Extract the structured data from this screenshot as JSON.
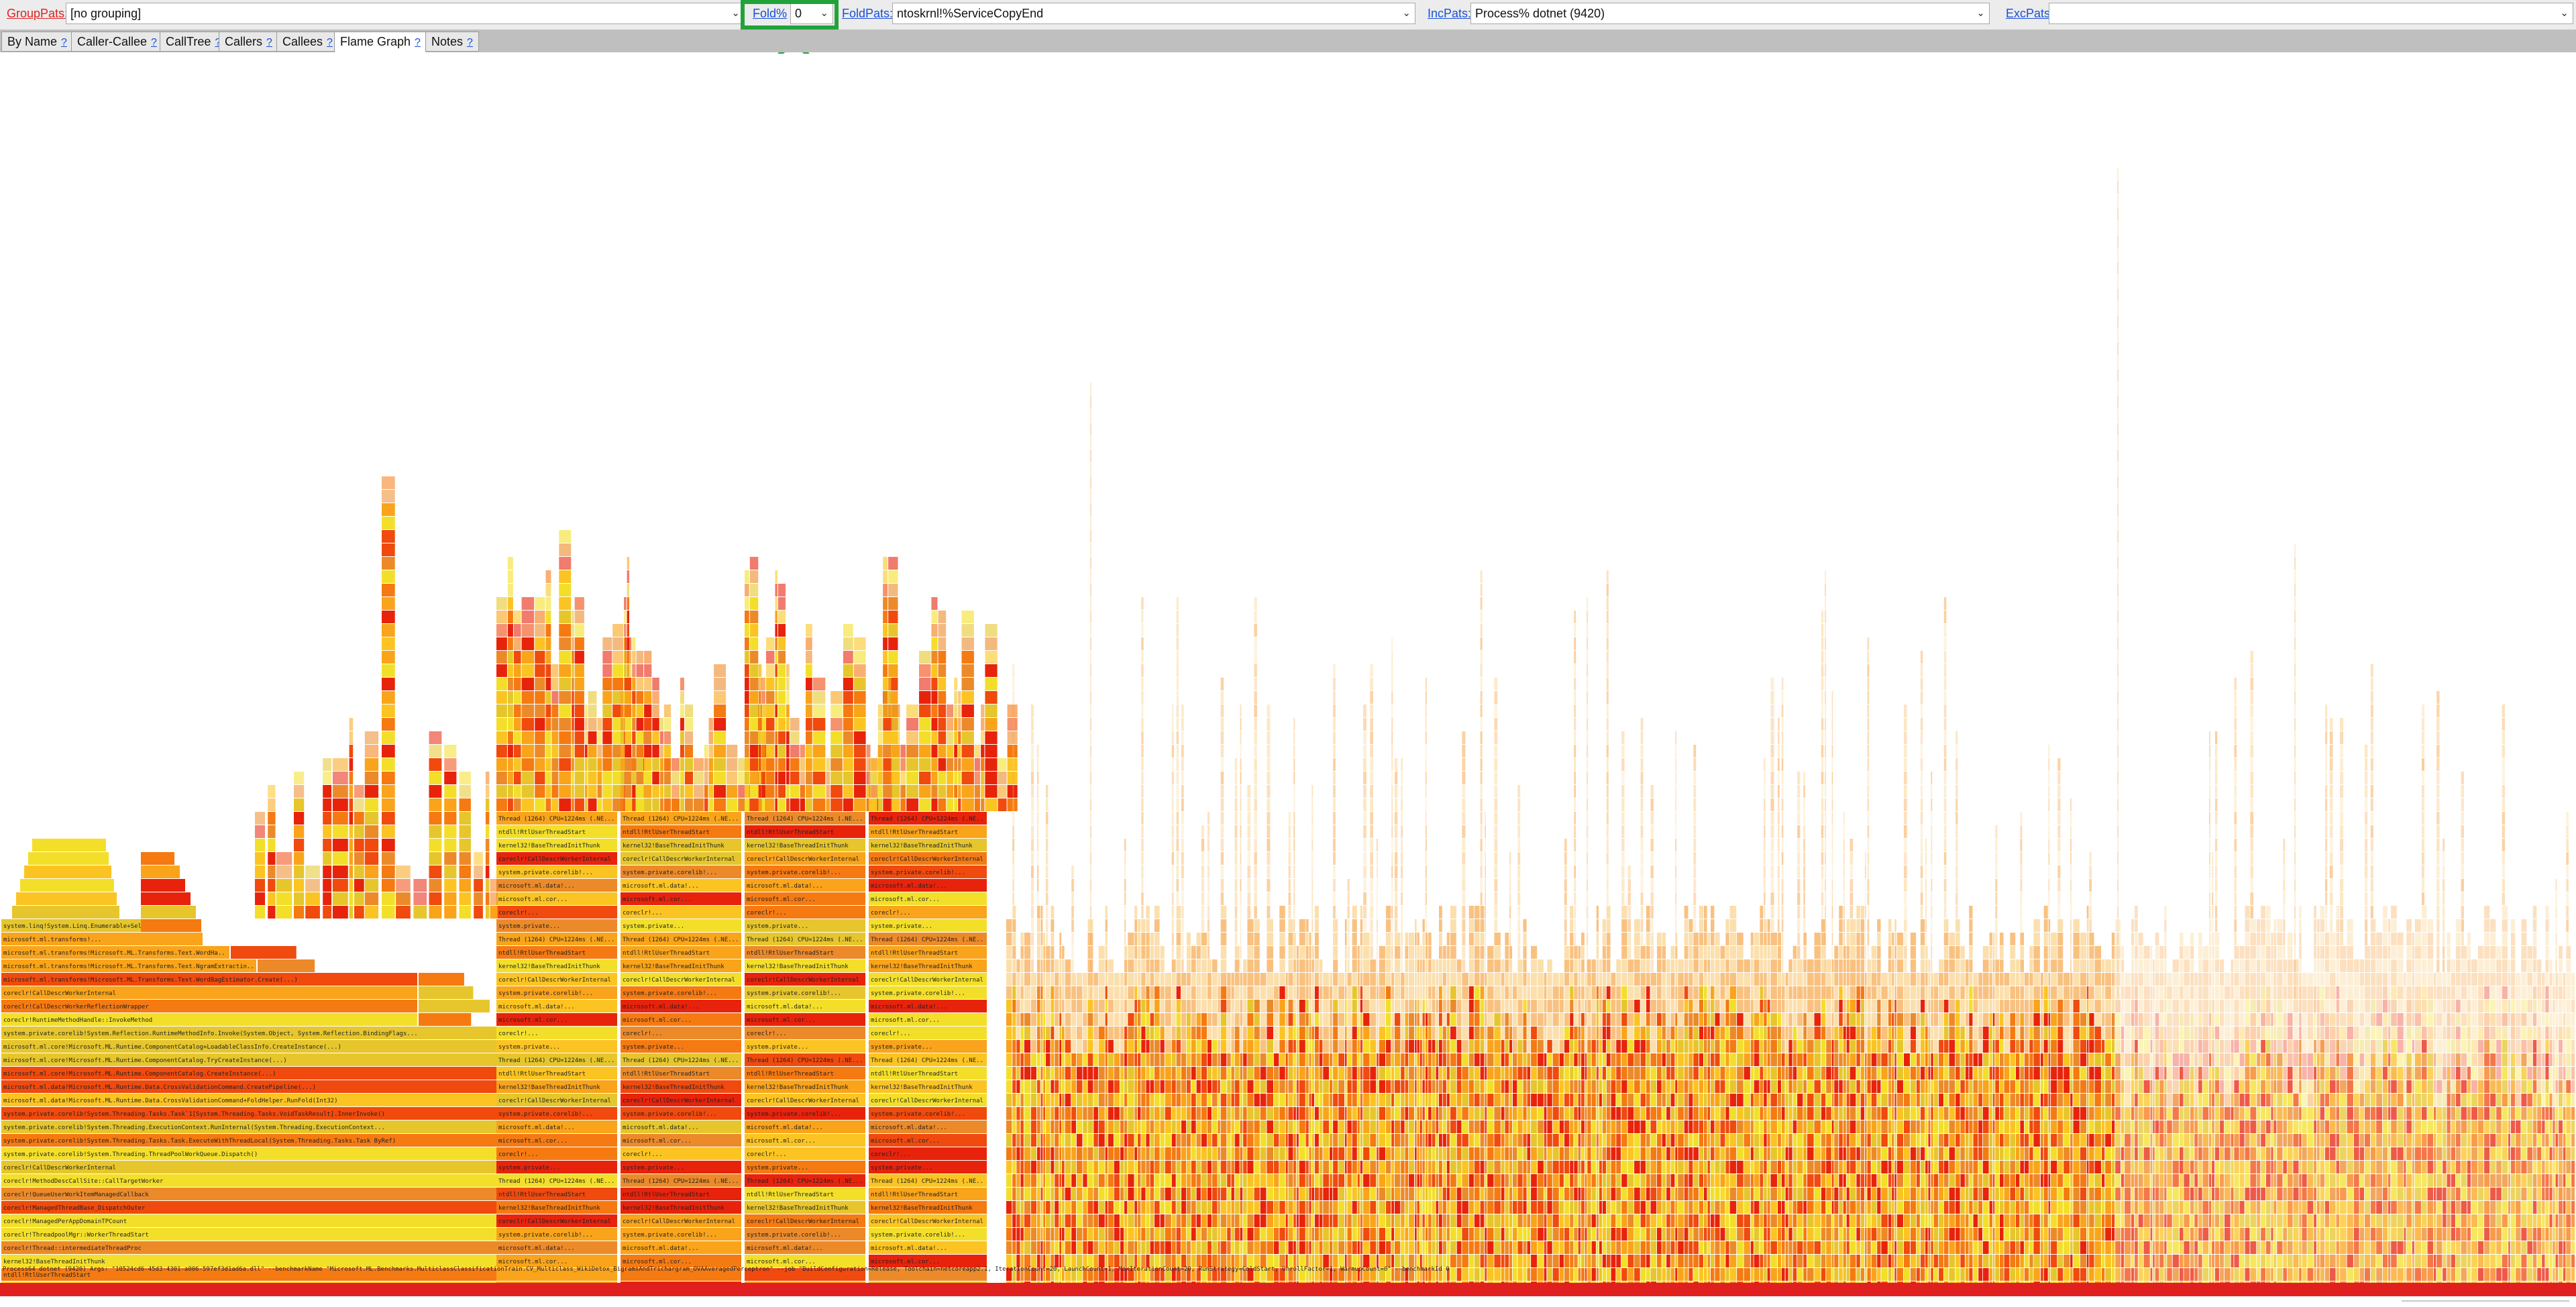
{
  "toolbar": {
    "group_pats": {
      "label": "GroupPats:",
      "value": "[no grouping]"
    },
    "fold_pct": {
      "label": "Fold%",
      "value": "0"
    },
    "fold_pats": {
      "label": "FoldPats:",
      "value": "ntoskrnl!%ServiceCopyEnd"
    },
    "inc_pats": {
      "label": "IncPats:",
      "value": "Process% dotnet (9420)"
    },
    "exc_pats": {
      "label": "ExcPats:",
      "value": ""
    }
  },
  "tabs": [
    {
      "label": "By Name",
      "help": "?"
    },
    {
      "label": "Caller-Callee",
      "help": "?"
    },
    {
      "label": "CallTree",
      "help": "?"
    },
    {
      "label": "Callers",
      "help": "?"
    },
    {
      "label": "Callees",
      "help": "?"
    },
    {
      "label": "Flame Graph",
      "help": "?",
      "active": true
    },
    {
      "label": "Notes",
      "help": "?"
    }
  ],
  "flame_graph": {
    "root": "Process64 dotnet (9420) Args: \"10524cd6-45d3-4301-a006-597ef3d1ad6a.dll\" --benchmarkName \"Microsoft.ML.Benchmarks.MulticlassClassificationTrain.CV_Multiclass_WikiDetox_BigramsAndTrichargram_OVAAveragedPerceptron\" --job \"BuildConfiguration=Release, Toolchain=netcoreapp2.1, IterationCount=20, LaunchCount=1, MaxIterationCount=20, RunStrategy=ColdStart, UnrollFactor=1, WarmupCount=0\" --benchmarkId 0",
    "column_a": [
      "Thread (1612) CPU=1224ms (.NET Core ThreadPool)",
      "ntdll!RtlUserThreadStart",
      "kernel32!BaseThreadInitThunk",
      "coreclr!Thread::intermediateThreadProc",
      "coreclr!ThreadpoolMgr::WorkerThreadStart",
      "coreclr!ManagedPerAppDomainTPCount",
      "coreclr!ManagedThreadBase_DispatchOuter",
      "coreclr!QueueUserWorkItemManagedCallback",
      "coreclr!MethodDescCallSite::CallTargetWorker",
      "coreclr!CallDescrWorkerInternal",
      "system.private.corelib!System.Threading.ThreadPoolWorkQueue.Dispatch()",
      "system.private.corelib!System.Threading.Tasks.Task.ExecuteWithThreadLocal(System.Threading.Tasks.Task ByRef)",
      "system.private.corelib!System.Threading.ExecutionContext.RunInternal(System.Threading.ExecutionContext...",
      "system.private.corelib!System.Threading.Tasks.Task`1[System.Threading.Tasks.VoidTaskResult].InnerInvoke()",
      "microsoft.ml.data!Microsoft.ML.Runtime.Data.CrossValidationCommand+FoldHelper.RunFold(Int32)",
      "microsoft.ml.data!Microsoft.ML.Runtime.Data.CrossValidationCommand.CreatePipeline(...)",
      "microsoft.ml.core!Microsoft.ML.Runtime.ComponentCatalog.CreateInstance(...)",
      "microsoft.ml.core!Microsoft.ML.Runtime.ComponentCatalog.TryCreateInstance(...)",
      "microsoft.ml.core!Microsoft.ML.Runtime.ComponentCatalog+LoadableClassInfo.CreateInstance(...)",
      "system.private.corelib!System.Reflection.RuntimeMethodInfo.Invoke(System.Object, System.Reflection.BindingFlags...",
      "coreclr!RuntimeMethodHandle::InvokeMethod",
      "coreclr!CallDescrWorkerReflectionWrapper",
      "coreclr!CallDescrWorkerInternal",
      "microsoft.ml.transforms!Microsoft.ML.Transforms.Text.WordBagEstimator.Create(...)",
      "microsoft.ml.transforms!Microsoft.ML.Transforms.Text.NgramExtractingTransformer...",
      "microsoft.ml.transforms!Microsoft.ML.Transforms.Text.WordHashBagTransform.Create(...)",
      "microsoft.ml.transforms!...",
      "system.linq!System.Linq.Enumerable+SelectListPartitionIterator`2..."
    ],
    "narrow_cells": [
      "system.private...",
      "coreclr!...",
      "microsoft.ml.cor...",
      "microsoft.ml.data!...",
      "system.private.corelib!...",
      "coreclr!CallDescrWorkerInternal",
      "kernel32!BaseThreadInitThunk",
      "ntdll!RtlUserThreadStart",
      "Thread (1264) CPU=1224ms (.NE..."
    ],
    "palette": [
      "#e8230c",
      "#f04a0e",
      "#f57a12",
      "#f9a41a",
      "#fbc422",
      "#f3df2a",
      "#e6c62c",
      "#ec8a2a",
      "#d9340e",
      "#f6a64a",
      "#f9d28a"
    ]
  }
}
